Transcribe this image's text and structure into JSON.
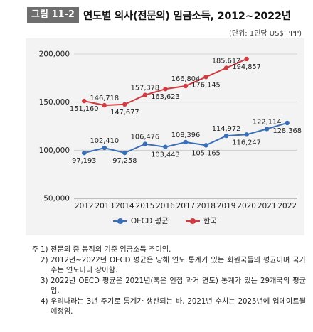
{
  "figure": {
    "badge": "그림 11-2",
    "title": "연도별 의사(전문의) 임금소득, 2012~2022년",
    "unit": "(단위: 1인당 US$ PPP)"
  },
  "chart_data": {
    "type": "line",
    "categories": [
      "2012",
      "2013",
      "2014",
      "2015",
      "2016",
      "2017",
      "2018",
      "2019",
      "2020",
      "2021",
      "2022"
    ],
    "yticks": [
      "50,000",
      "100,000",
      "150,000",
      "200,000"
    ],
    "ylim": [
      50000,
      200000
    ],
    "grid": true,
    "legend_position": "bottom",
    "series": [
      {
        "name": "OECD 평균",
        "color": "#3a6fb8",
        "values": [
          97193,
          102410,
          97258,
          106476,
          103443,
          108396,
          105165,
          114972,
          116247,
          122114,
          128368
        ],
        "labels": [
          "97,193",
          "102,410",
          "97,258",
          "106,476",
          "103,443",
          "108,396",
          "105,165",
          "114,972",
          "116,247",
          "122,114",
          "128,368"
        ]
      },
      {
        "name": "한국",
        "color": "#d03b40",
        "values": [
          151160,
          146718,
          147677,
          157378,
          163623,
          166804,
          176145,
          185612,
          194857,
          null,
          null
        ],
        "labels": [
          "151,160",
          "146,718",
          "147,677",
          "157,378",
          "163,623",
          "166,804",
          "176,145",
          "185,612",
          "194,857",
          null,
          null
        ]
      }
    ]
  },
  "notes": {
    "prefix": "주",
    "items": [
      {
        "num": "1)",
        "text": "전문의 중 봉직의 기준 임금소득 추이임."
      },
      {
        "num": "2)",
        "text": "2012년~2022년 OECD 평균은 당해 연도 통계가 있는 회원국들의 평균이며 국가 수는 연도마다 상이함."
      },
      {
        "num": "3)",
        "text": "2022년 OECD 평균은 2021년(혹은 인접 과거 연도) 통계가 있는 29개국의 평균임."
      },
      {
        "num": "4)",
        "text": "우리나라는 3년 주기로 통계가 생산되는 바, 2021년 수치는 2025년에 업데이트될 예정임."
      }
    ]
  }
}
